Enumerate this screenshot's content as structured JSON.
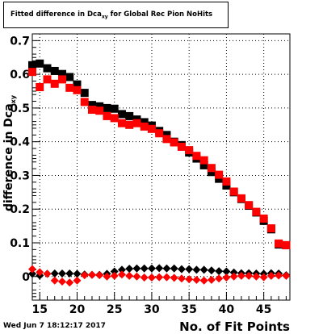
{
  "title": {
    "prefix": "Fitted difference in Dca",
    "sub": "xy",
    "suffix": " for Global Rec Pion NoHits"
  },
  "timestamp": "Wed Jun  7 18:12:17 2017",
  "chart_data": {
    "type": "scatter",
    "xlabel": "No. of Fit Points",
    "ylabel": "difference in Dca",
    "ylabel_sub": "xy",
    "xlim": [
      14,
      48.5
    ],
    "ylim": [
      -0.07,
      0.72
    ],
    "xticks": [
      15,
      20,
      25,
      30,
      35,
      40,
      45
    ],
    "yticks": [
      0,
      0.1,
      0.2,
      0.3,
      0.4,
      0.5,
      0.6,
      0.7
    ],
    "ytick_labels": [
      "0",
      "0.1",
      "0.2",
      "0.3",
      "0.4",
      "0.5",
      "0.6",
      "0.7"
    ],
    "grid": true,
    "colors": {
      "black": "#000000",
      "red": "#ff0000"
    },
    "series": [
      {
        "marker": "square",
        "color": "#000000",
        "x": [
          14,
          15,
          16,
          17,
          18,
          19,
          20,
          21,
          22,
          23,
          24,
          25,
          26,
          27,
          28,
          29,
          30,
          31,
          32,
          33,
          34,
          35,
          36,
          37,
          38,
          39,
          40,
          41,
          42,
          43,
          44,
          45,
          46,
          47,
          48
        ],
        "y": [
          0.627,
          0.632,
          0.618,
          0.61,
          0.601,
          0.592,
          0.57,
          0.545,
          0.509,
          0.505,
          0.5,
          0.498,
          0.482,
          0.476,
          0.466,
          0.458,
          0.448,
          0.432,
          0.42,
          0.4,
          0.39,
          0.368,
          0.35,
          0.33,
          0.31,
          0.29,
          0.27,
          0.25,
          0.23,
          0.21,
          0.19,
          0.165,
          0.14,
          0.095,
          0.093
        ]
      },
      {
        "marker": "square",
        "color": "#ff0000",
        "x": [
          14,
          15,
          16,
          17,
          18,
          19,
          20,
          21,
          22,
          23,
          24,
          25,
          26,
          27,
          28,
          29,
          30,
          31,
          32,
          33,
          34,
          35,
          36,
          37,
          38,
          39,
          40,
          41,
          42,
          43,
          44,
          45,
          46,
          47,
          48
        ],
        "y": [
          0.607,
          0.562,
          0.585,
          0.572,
          0.585,
          0.56,
          0.553,
          0.518,
          0.495,
          0.492,
          0.476,
          0.47,
          0.455,
          0.45,
          0.455,
          0.445,
          0.438,
          0.425,
          0.408,
          0.398,
          0.385,
          0.375,
          0.358,
          0.345,
          0.322,
          0.302,
          0.282,
          0.252,
          0.232,
          0.212,
          0.192,
          0.172,
          0.143,
          0.098,
          0.093
        ]
      },
      {
        "marker": "diamond",
        "color": "#000000",
        "x": [
          14,
          15,
          16,
          17,
          18,
          19,
          20,
          21,
          22,
          23,
          24,
          25,
          26,
          27,
          28,
          29,
          30,
          31,
          32,
          33,
          34,
          35,
          36,
          37,
          38,
          39,
          40,
          41,
          42,
          43,
          44,
          45,
          46,
          47,
          48
        ],
        "y": [
          0.008,
          0.003,
          0.008,
          0.009,
          0.009,
          0.009,
          0.008,
          0.006,
          0.005,
          0.005,
          0.008,
          0.015,
          0.02,
          0.023,
          0.024,
          0.024,
          0.024,
          0.025,
          0.024,
          0.024,
          0.022,
          0.022,
          0.02,
          0.02,
          0.018,
          0.016,
          0.015,
          0.012,
          0.01,
          0.01,
          0.009,
          0.008,
          0.01,
          0.009,
          0.004
        ]
      },
      {
        "marker": "diamond",
        "color": "#ff0000",
        "x": [
          14,
          15,
          16,
          17,
          18,
          19,
          20,
          21,
          22,
          23,
          24,
          25,
          26,
          27,
          28,
          29,
          30,
          31,
          32,
          33,
          34,
          35,
          36,
          37,
          38,
          39,
          40,
          41,
          42,
          43,
          44,
          45,
          46,
          47,
          48
        ],
        "y": [
          0.022,
          0.013,
          0.008,
          -0.012,
          -0.015,
          -0.018,
          -0.012,
          0.004,
          0.005,
          0.004,
          0.0,
          0.002,
          0.006,
          0.002,
          0.0,
          -0.003,
          -0.003,
          -0.002,
          -0.002,
          -0.004,
          -0.006,
          -0.008,
          -0.01,
          -0.012,
          -0.01,
          -0.006,
          -0.003,
          0.0,
          0.002,
          0.002,
          0.0,
          -0.002,
          0.002,
          0.003,
          0.002
        ]
      }
    ]
  }
}
